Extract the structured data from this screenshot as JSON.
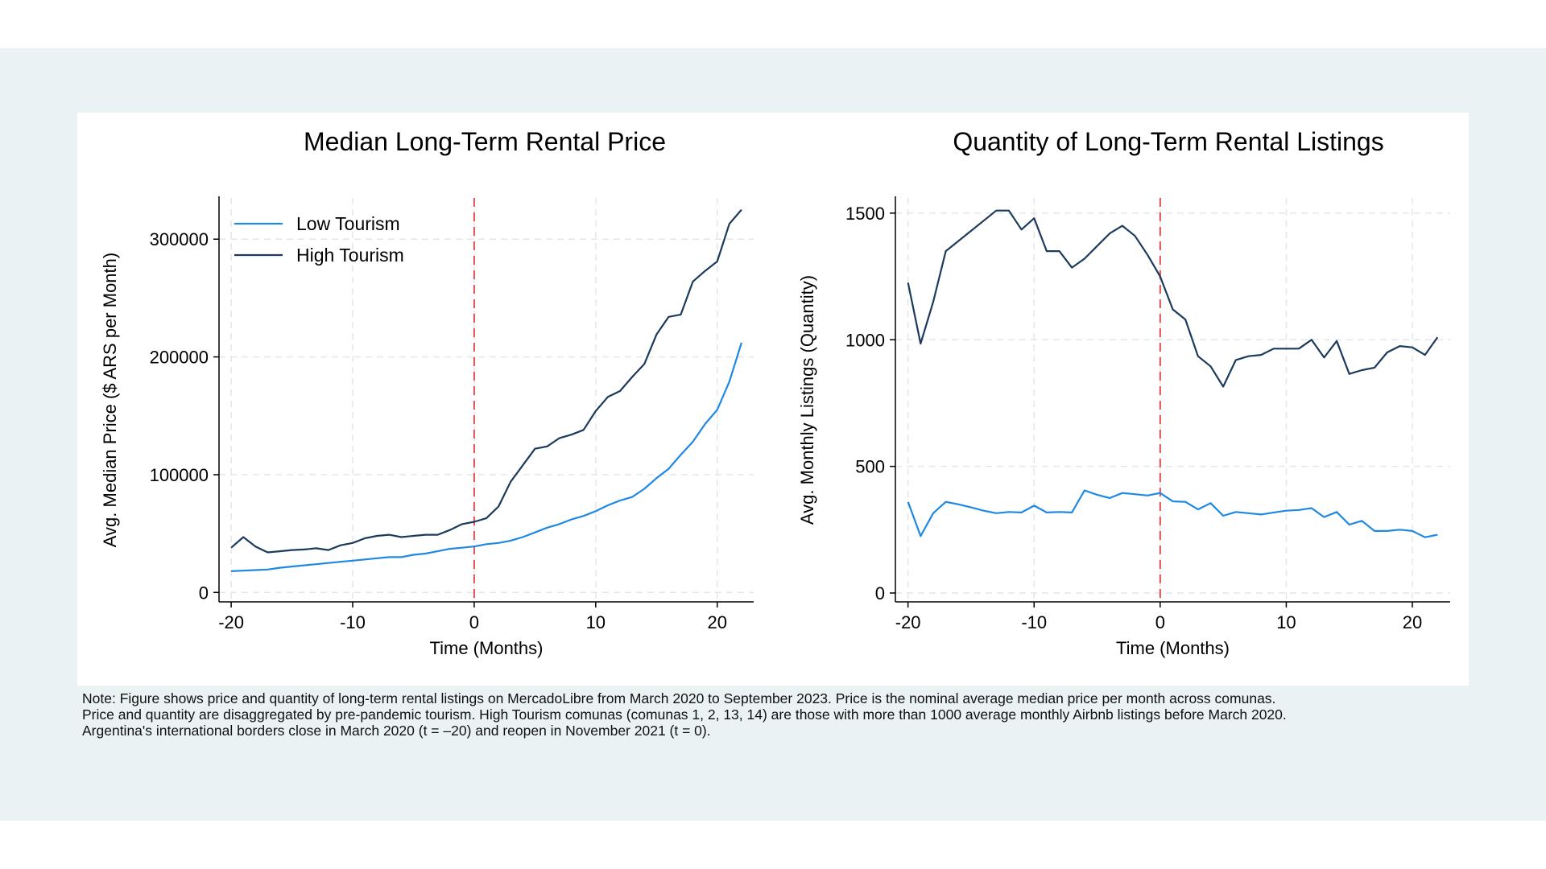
{
  "chart_data": [
    {
      "type": "line",
      "title": "Median Long-Term Rental Price",
      "xlabel": "Time (Months)",
      "ylabel": "Avg. Median Price ($ ARS per Month)",
      "xlim": [
        -21,
        23
      ],
      "ylim": [
        -8000,
        335000
      ],
      "xticks": [
        -20,
        -10,
        0,
        10,
        20
      ],
      "xtick_labels": [
        "-20",
        "-10",
        "0",
        "10",
        "20"
      ],
      "yticks": [
        0,
        100000,
        200000,
        300000
      ],
      "ytick_labels": [
        "0",
        "100000",
        "200000",
        "300000"
      ],
      "reference_line_x": 0,
      "legend_position": "top-left",
      "x": [
        -20,
        -19,
        -18,
        -17,
        -16,
        -15,
        -14,
        -13,
        -12,
        -11,
        -10,
        -9,
        -8,
        -7,
        -6,
        -5,
        -4,
        -3,
        -2,
        -1,
        0,
        1,
        2,
        3,
        4,
        5,
        6,
        7,
        8,
        9,
        10,
        11,
        12,
        13,
        14,
        15,
        16,
        17,
        18,
        19,
        20,
        21,
        22
      ],
      "series": [
        {
          "name": "Low Tourism",
          "color": "#1e88e5",
          "values": [
            18000,
            18500,
            19000,
            19500,
            21000,
            22000,
            23000,
            24000,
            25000,
            26000,
            27000,
            28000,
            29000,
            30000,
            30000,
            32000,
            33000,
            35000,
            37000,
            38000,
            39000,
            41000,
            42000,
            44000,
            47000,
            51000,
            55000,
            58000,
            62000,
            65000,
            69000,
            74000,
            78000,
            81000,
            88000,
            97000,
            105000,
            117000,
            128000,
            143000,
            155000,
            179000,
            212000
          ]
        },
        {
          "name": "High Tourism",
          "color": "#1b3a5c",
          "values": [
            38000,
            47000,
            39000,
            34000,
            35000,
            36000,
            36500,
            37500,
            36000,
            40000,
            42000,
            46000,
            48000,
            49000,
            47000,
            48000,
            49000,
            49000,
            53000,
            58000,
            60000,
            63000,
            73000,
            94000,
            108000,
            122000,
            124000,
            131000,
            134000,
            138000,
            154000,
            166000,
            171000,
            183000,
            194000,
            219000,
            234000,
            236000,
            264000,
            273000,
            281000,
            313000,
            325000
          ]
        }
      ]
    },
    {
      "type": "line",
      "title": "Quantity of Long-Term Rental Listings",
      "xlabel": "Time (Months)",
      "ylabel": "Avg. Monthly Listings (Quantity)",
      "xlim": [
        -21,
        23
      ],
      "ylim": [
        -35,
        1560
      ],
      "xticks": [
        -20,
        -10,
        0,
        10,
        20
      ],
      "xtick_labels": [
        "-20",
        "-10",
        "0",
        "10",
        "20"
      ],
      "yticks": [
        0,
        500,
        1000,
        1500
      ],
      "ytick_labels": [
        "0",
        "500",
        "1000",
        "1500"
      ],
      "reference_line_x": 0,
      "x": [
        -20,
        -19,
        -18,
        -17,
        -16,
        -15,
        -14,
        -13,
        -12,
        -11,
        -10,
        -9,
        -8,
        -7,
        -6,
        -5,
        -4,
        -3,
        -2,
        -1,
        0,
        1,
        2,
        3,
        4,
        5,
        6,
        7,
        8,
        9,
        10,
        11,
        12,
        13,
        14,
        15,
        16,
        17,
        18,
        19,
        20,
        21,
        22
      ],
      "series": [
        {
          "name": "Low Tourism",
          "color": "#1e88e5",
          "values": [
            360,
            225,
            315,
            360,
            350,
            338,
            325,
            315,
            320,
            318,
            345,
            318,
            320,
            318,
            405,
            388,
            375,
            395,
            390,
            385,
            395,
            362,
            360,
            330,
            355,
            305,
            320,
            315,
            310,
            318,
            325,
            328,
            335,
            300,
            320,
            270,
            285,
            245,
            245,
            250,
            245,
            220,
            230
          ]
        },
        {
          "name": "High Tourism",
          "color": "#1b3a5c",
          "values": [
            1225,
            985,
            1150,
            1350,
            1390,
            1430,
            1470,
            1510,
            1510,
            1435,
            1480,
            1350,
            1350,
            1285,
            1320,
            1370,
            1420,
            1450,
            1410,
            1335,
            1250,
            1120,
            1080,
            935,
            895,
            815,
            920,
            935,
            940,
            965,
            965,
            965,
            1000,
            930,
            995,
            865,
            880,
            890,
            950,
            975,
            970,
            940,
            1010
          ]
        }
      ]
    }
  ],
  "note": {
    "line1": "Note: Figure shows price and quantity of long-term rental listings on MercadoLibre from March 2020 to September 2023. Price is the nominal average median price per month across comunas.",
    "line2": "Price and quantity are disaggregated by pre-pandemic tourism. High Tourism comunas (comunas 1, 2, 13, 14) are those with more than 1000 average monthly Airbnb listings before March 2020.",
    "line3": "Argentina's international borders close in March 2020 (t = –20) and reopen in November 2021 (t = 0)."
  },
  "colors": {
    "grid": "#e6e6e6",
    "reference_line": "#e05050",
    "axis": "#000000"
  }
}
